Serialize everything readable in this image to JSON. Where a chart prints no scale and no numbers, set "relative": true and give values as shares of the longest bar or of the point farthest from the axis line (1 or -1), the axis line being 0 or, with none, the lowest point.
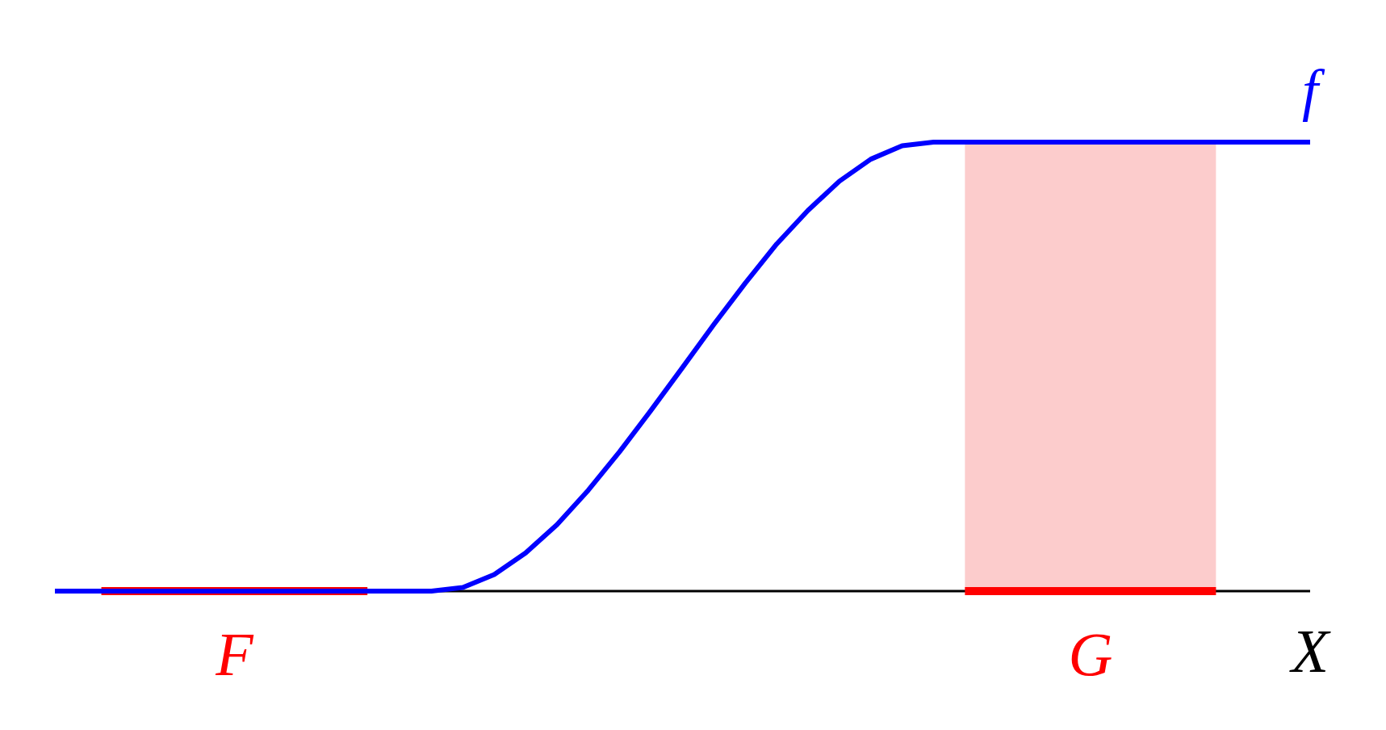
{
  "chart_data": {
    "type": "line",
    "relative": true,
    "xlabel": "X",
    "annotations": [
      "F",
      "G"
    ],
    "categories": [
      null,
      null,
      null,
      null,
      null,
      null,
      null,
      null,
      null,
      null,
      null,
      null,
      null,
      null,
      null,
      null,
      null,
      null,
      null,
      null,
      null,
      null,
      null,
      null,
      null,
      null,
      null,
      null,
      null,
      null,
      null,
      null,
      null,
      null,
      null,
      null,
      null,
      null,
      null,
      null,
      null
    ],
    "series": [
      {
        "name": "f",
        "color": "#0000ff",
        "values": [
          0,
          0,
          0,
          0,
          0,
          0,
          0,
          0,
          0,
          0,
          0,
          0,
          0,
          0.008,
          0.037,
          0.085,
          0.148,
          0.225,
          0.311,
          0.403,
          0.498,
          0.594,
          0.686,
          0.773,
          0.848,
          0.913,
          0.962,
          0.992,
          1,
          1,
          1,
          1,
          1,
          1,
          1,
          1,
          1,
          1,
          1,
          1,
          1
        ]
      }
    ]
  }
}
